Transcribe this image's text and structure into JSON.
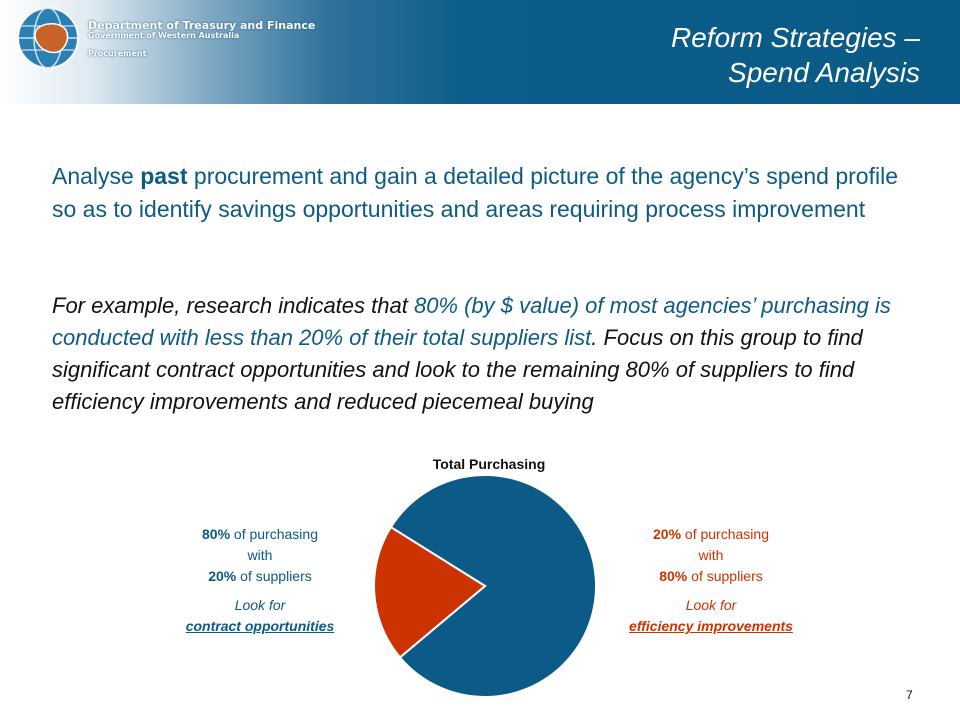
{
  "header": {
    "org_line1": "Department of Treasury and Finance",
    "org_line2": "Government of Western Australia",
    "org_line3": "Procurement",
    "title_line1": "Reform Strategies –",
    "title_line2": "Spend Analysis",
    "logo_icon": "globe-australia-icon"
  },
  "body": {
    "intro_before": "Analyse ",
    "intro_bold": "past",
    "intro_after": " procurement and gain a detailed picture of the agency’s spend profile so as to identify savings opportunities and areas requiring process improvement",
    "example_before": "For example, research indicates that ",
    "example_highlight": "80% (by $ value) of most agencies’ purchasing is conducted with less than 20% of their total suppliers list",
    "example_after": ". Focus on this group to find significant contract opportunities and look to the remaining 80% of suppliers to find efficiency improvements and reduced piecemeal buying"
  },
  "chart_data": {
    "type": "pie",
    "title": "Total Purchasing",
    "slices": [
      {
        "value": 80,
        "color": "#0b5a87"
      },
      {
        "value": 20,
        "color": "#cc3300"
      }
    ],
    "start_angle_deg": 212,
    "annotations": {
      "left": {
        "pct1": "80%",
        "text1": " of purchasing",
        "text2": "with",
        "pct2": "20%",
        "text3": " of suppliers",
        "look": "Look for",
        "action": "contract opportunities",
        "color": "#0b5a87"
      },
      "right": {
        "pct1": "20%",
        "text1": " of purchasing",
        "text2": "with",
        "pct2": "80%",
        "text3": " of suppliers",
        "look": "Look for",
        "action": "efficiency improvements",
        "color": "#cc3300"
      }
    }
  },
  "footer": {
    "page_number": "7"
  }
}
